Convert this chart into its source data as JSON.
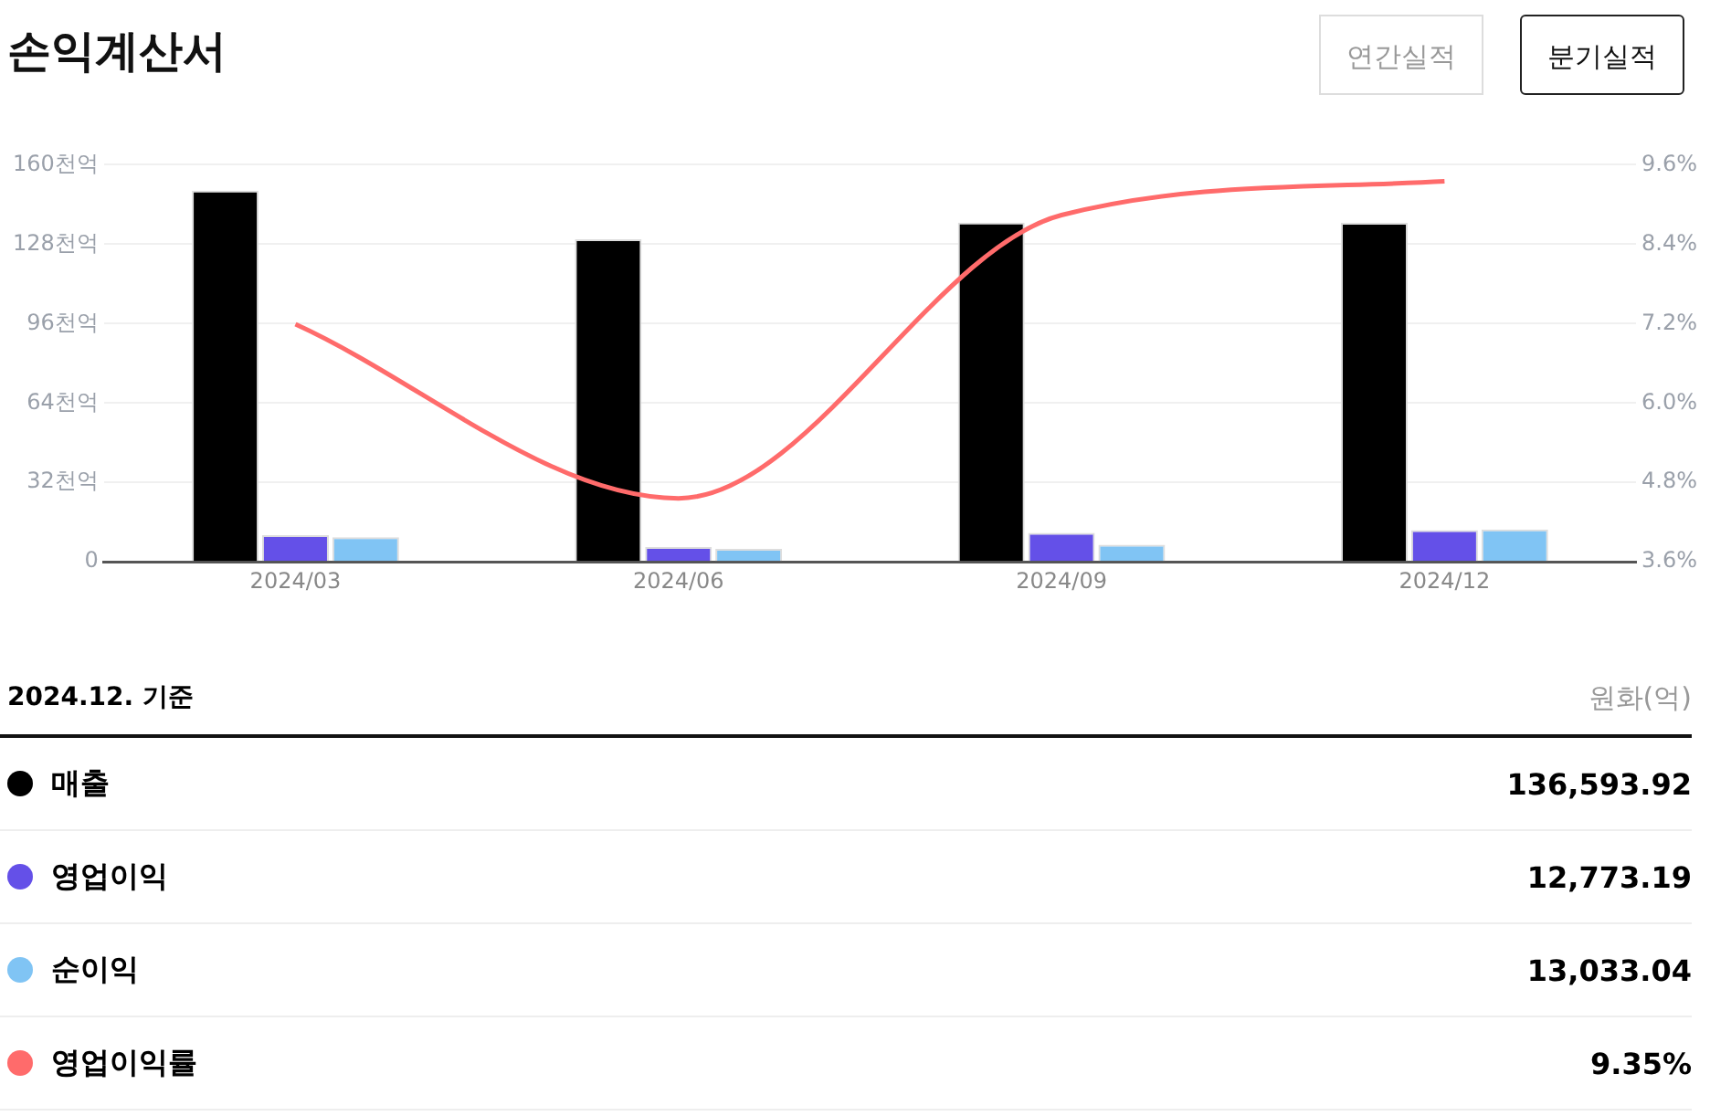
{
  "chart_data": {
    "type": "bar",
    "title": "손익계산서",
    "categories": [
      "2024/03",
      "2024/06",
      "2024/09",
      "2024/12"
    ],
    "series": [
      {
        "name": "매출",
        "color": "#000000",
        "values": [
          149.6,
          130,
          136.7,
          136.6
        ]
      },
      {
        "name": "영업이익",
        "color": "#6450e8",
        "values": [
          10.7,
          6.0,
          11.7,
          12.8
        ]
      },
      {
        "name": "순이익",
        "color": "#80c4f4",
        "values": [
          9.9,
          5.2,
          6.9,
          13.0
        ]
      },
      {
        "name": "영업이익률",
        "type": "line",
        "axis": "y2",
        "color": "#ff6b6b",
        "values": [
          7.19,
          4.56,
          8.84,
          9.35
        ]
      }
    ],
    "ylim": [
      0,
      160
    ],
    "yticks": [
      0,
      {
        "value": 32,
        "label": "32천억"
      },
      {
        "value": 64,
        "label": "64천억"
      },
      {
        "value": 96,
        "label": "96천억"
      },
      {
        "value": 128,
        "label": "128천억"
      },
      {
        "value": 160,
        "label": "160천억"
      }
    ],
    "y2lim": [
      3.6,
      9.6
    ],
    "y2ticks": [
      {
        "value": 3.6,
        "label": "3.6%"
      },
      {
        "value": 4.8,
        "label": "4.8%"
      },
      {
        "value": 6.0,
        "label": "6.0%"
      },
      {
        "value": 7.2,
        "label": "7.2%"
      },
      {
        "value": 8.4,
        "label": "8.4%"
      },
      {
        "value": 9.6,
        "label": "9.6%"
      }
    ],
    "grid": "y",
    "legend": "bottom",
    "annotations": [
      "연간실적",
      "분기실적",
      "2024.12. 기준",
      "원화(억)",
      "136,593.92",
      "12,773.19",
      "13,033.04",
      "9.35%"
    ]
  }
}
